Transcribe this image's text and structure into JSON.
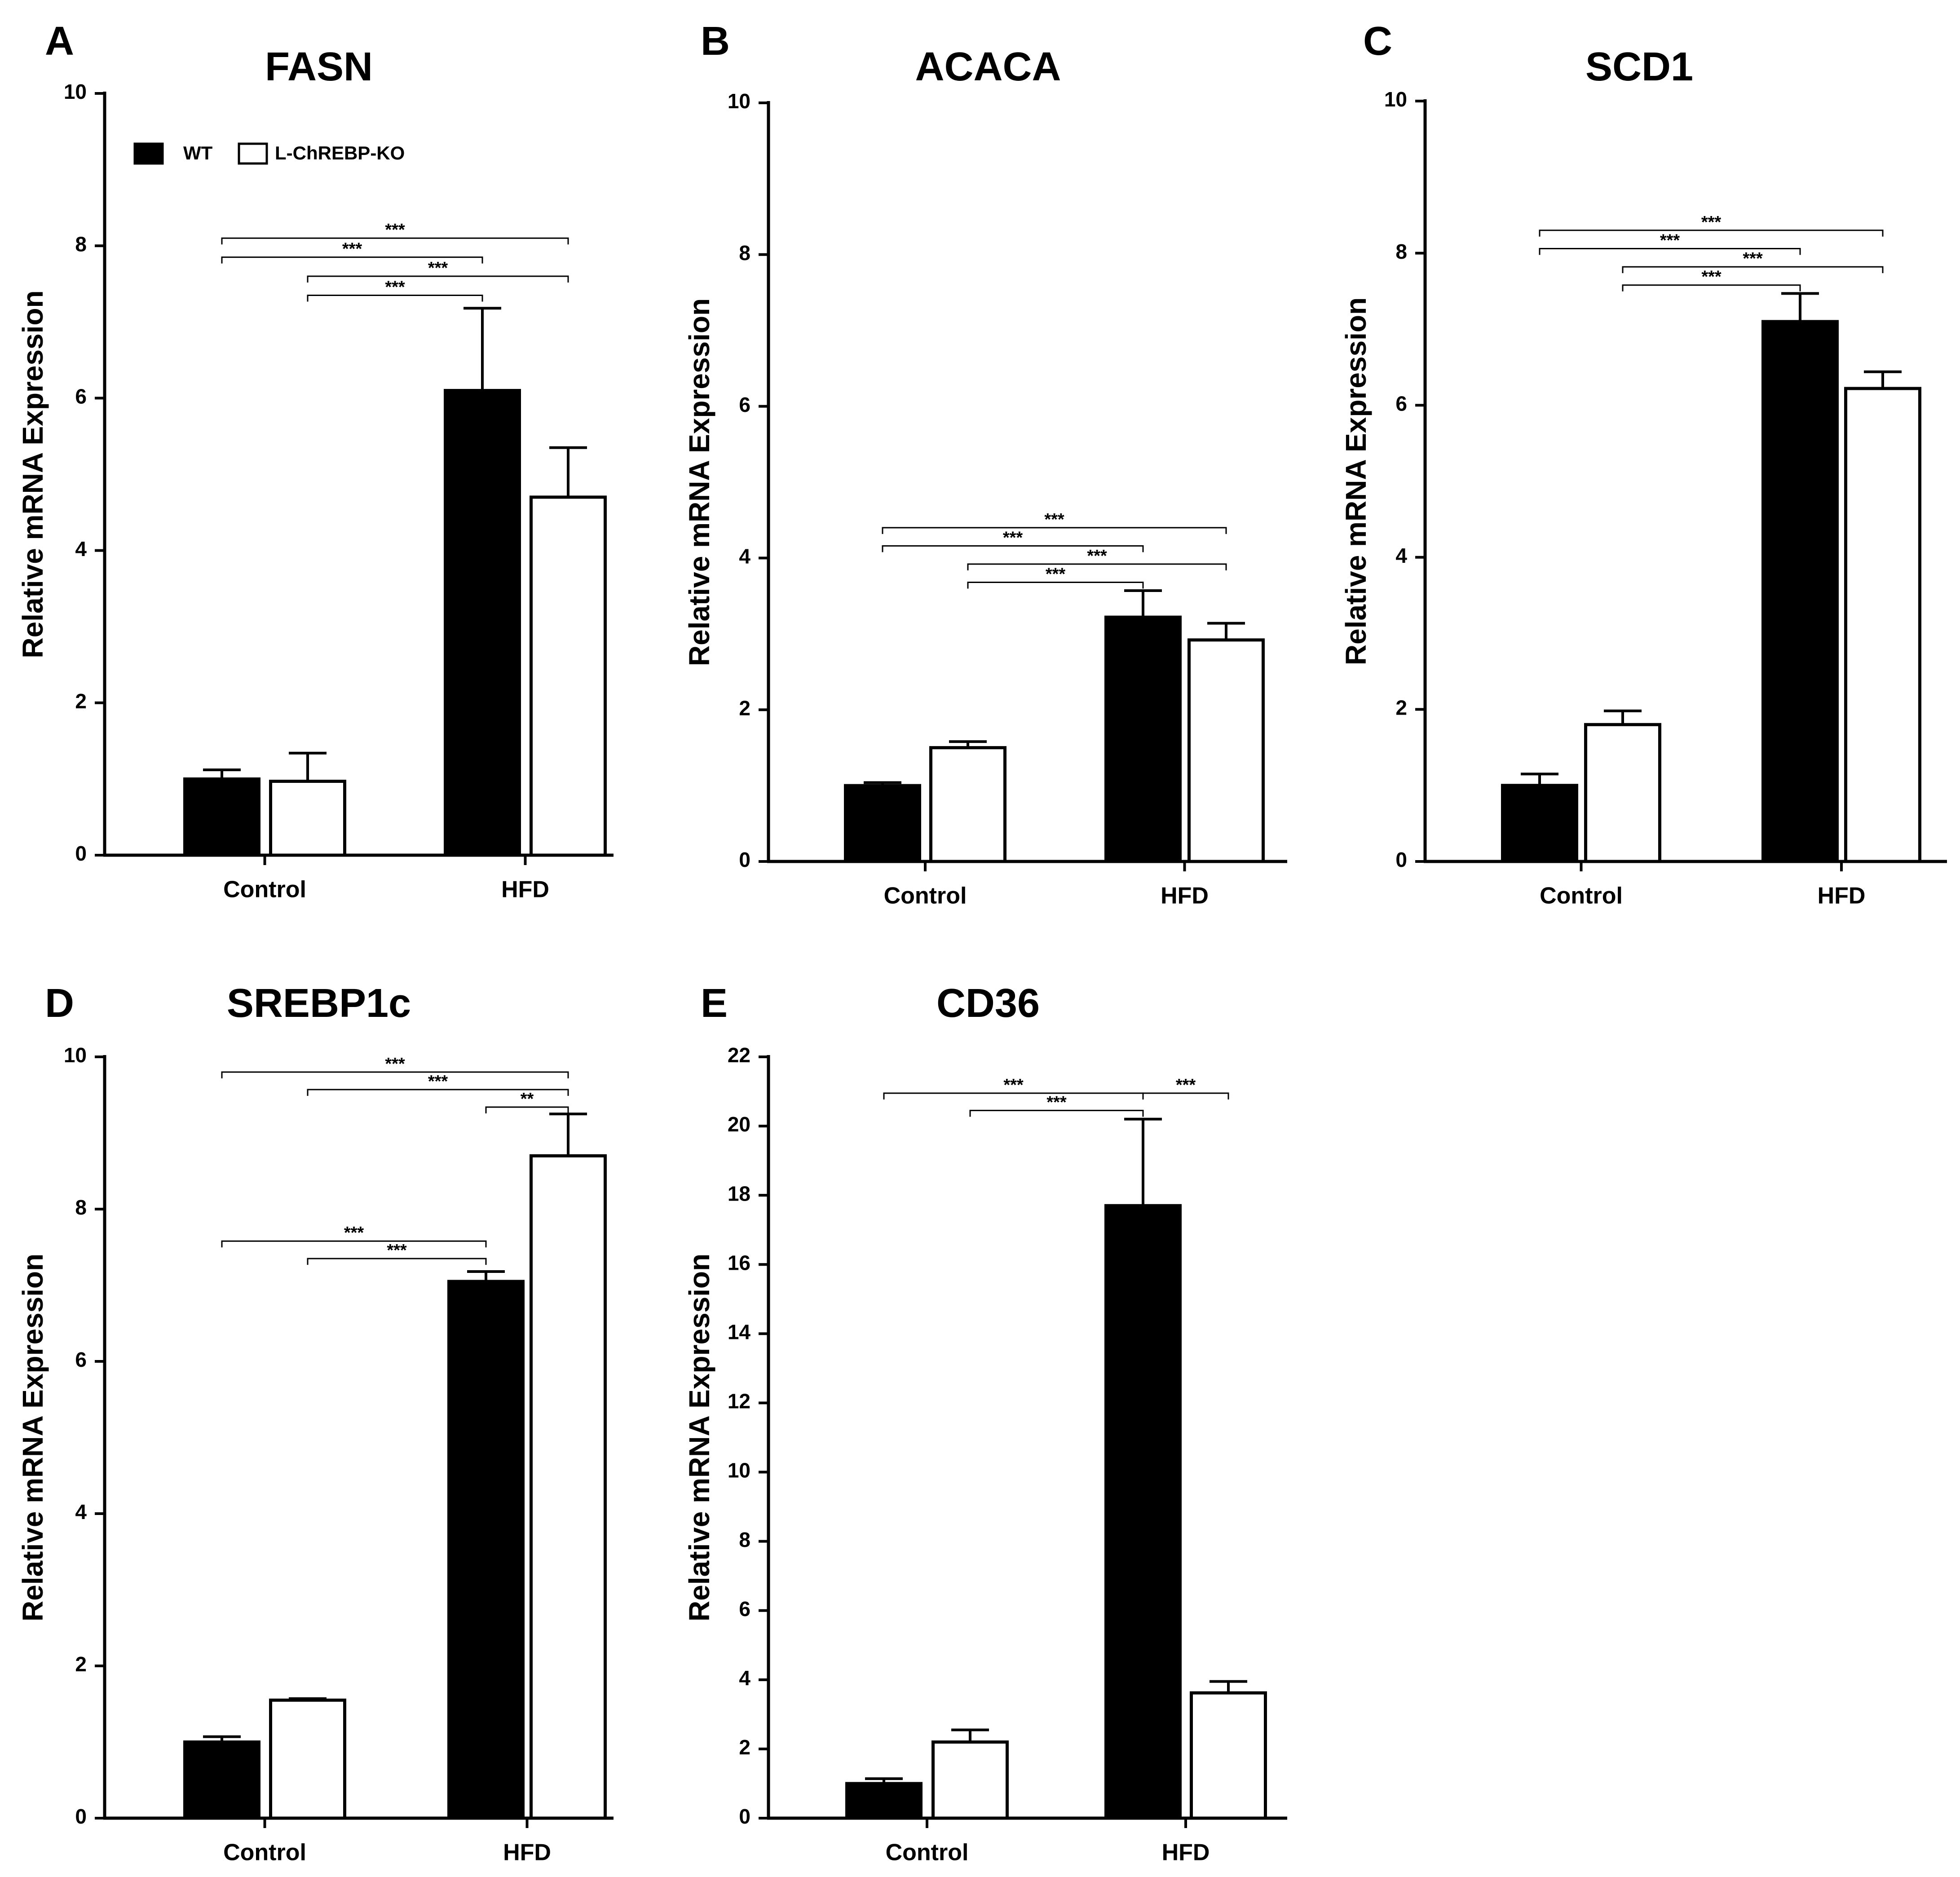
{
  "legend": {
    "entries": [
      {
        "name": "WT",
        "color": "#000000"
      },
      {
        "name": "L-ChREBP-KO",
        "color": "#ffffff"
      }
    ]
  },
  "chart_data": [
    {
      "type": "bar",
      "panel": "A",
      "title": "FASN",
      "xlabel": "",
      "ylabel": "Relative mRNA Expression",
      "categories": [
        "Control",
        "HFD"
      ],
      "ylim": [
        0,
        10
      ],
      "yticks": [
        0,
        2,
        4,
        6,
        8,
        10
      ],
      "show_legend": true,
      "series": [
        {
          "name": "WT",
          "values": [
            1.0,
            6.1
          ],
          "errors": [
            0.12,
            1.08
          ]
        },
        {
          "name": "L-ChREBP-KO",
          "values": [
            0.97,
            4.7
          ],
          "errors": [
            0.37,
            0.65
          ]
        }
      ],
      "significance": [
        {
          "from": [
            0,
            0
          ],
          "to": [
            1,
            1
          ],
          "label": "***",
          "level": 8.1
        },
        {
          "from": [
            0,
            0
          ],
          "to": [
            1,
            0
          ],
          "label": "***",
          "level": 7.85
        },
        {
          "from": [
            0,
            1
          ],
          "to": [
            1,
            1
          ],
          "label": "***",
          "level": 7.6
        },
        {
          "from": [
            0,
            1
          ],
          "to": [
            1,
            0
          ],
          "label": "***",
          "level": 7.35
        }
      ]
    },
    {
      "type": "bar",
      "panel": "B",
      "title": "ACACA",
      "xlabel": "",
      "ylabel": "Relative mRNA Expression",
      "categories": [
        "Control",
        "HFD"
      ],
      "ylim": [
        0,
        10
      ],
      "yticks": [
        0,
        2,
        4,
        6,
        8,
        10
      ],
      "show_legend": false,
      "series": [
        {
          "name": "WT",
          "values": [
            1.0,
            3.22
          ],
          "errors": [
            0.04,
            0.35
          ]
        },
        {
          "name": "L-ChREBP-KO",
          "values": [
            1.5,
            2.92
          ],
          "errors": [
            0.08,
            0.22
          ]
        }
      ],
      "significance": [
        {
          "from": [
            0,
            0
          ],
          "to": [
            1,
            1
          ],
          "label": "***",
          "level": 4.4
        },
        {
          "from": [
            0,
            0
          ],
          "to": [
            1,
            0
          ],
          "label": "***",
          "level": 4.16
        },
        {
          "from": [
            0,
            1
          ],
          "to": [
            1,
            1
          ],
          "label": "***",
          "level": 3.92
        },
        {
          "from": [
            0,
            1
          ],
          "to": [
            1,
            0
          ],
          "label": "***",
          "level": 3.68
        }
      ]
    },
    {
      "type": "bar",
      "panel": "C",
      "title": "SCD1",
      "xlabel": "",
      "ylabel": "Relative mRNA Expression",
      "categories": [
        "Control",
        "HFD"
      ],
      "ylim": [
        0,
        10
      ],
      "yticks": [
        0,
        2,
        4,
        6,
        8,
        10
      ],
      "show_legend": false,
      "series": [
        {
          "name": "WT",
          "values": [
            1.0,
            7.1
          ],
          "errors": [
            0.15,
            0.37
          ]
        },
        {
          "name": "L-ChREBP-KO",
          "values": [
            1.8,
            6.22
          ],
          "errors": [
            0.18,
            0.22
          ]
        }
      ],
      "significance": [
        {
          "from": [
            0,
            0
          ],
          "to": [
            1,
            1
          ],
          "label": "***",
          "level": 8.3
        },
        {
          "from": [
            0,
            0
          ],
          "to": [
            1,
            0
          ],
          "label": "***",
          "level": 8.06
        },
        {
          "from": [
            0,
            1
          ],
          "to": [
            1,
            1
          ],
          "label": "***",
          "level": 7.82
        },
        {
          "from": [
            0,
            1
          ],
          "to": [
            1,
            0
          ],
          "label": "***",
          "level": 7.58
        }
      ]
    },
    {
      "type": "bar",
      "panel": "D",
      "title": "SREBP1c",
      "xlabel": "",
      "ylabel": "Relative mRNA Expression",
      "categories": [
        "Control",
        "HFD"
      ],
      "ylim": [
        0,
        10
      ],
      "yticks": [
        0,
        2,
        4,
        6,
        8,
        10
      ],
      "show_legend": false,
      "series": [
        {
          "name": "WT",
          "values": [
            1.0,
            7.05
          ],
          "errors": [
            0.07,
            0.13
          ]
        },
        {
          "name": "L-ChREBP-KO",
          "values": [
            1.55,
            8.7
          ],
          "errors": [
            0.02,
            0.55
          ]
        }
      ],
      "significance": [
        {
          "from": [
            0,
            0
          ],
          "to": [
            1,
            1
          ],
          "label": "***",
          "level": 9.8
        },
        {
          "from": [
            0,
            1
          ],
          "to": [
            1,
            1
          ],
          "label": "***",
          "level": 9.57
        },
        {
          "from": [
            1,
            0
          ],
          "to": [
            1,
            1
          ],
          "label": "**",
          "level": 9.34
        },
        {
          "from": [
            0,
            0
          ],
          "to": [
            1,
            0
          ],
          "label": "***",
          "level": 7.58
        },
        {
          "from": [
            0,
            1
          ],
          "to": [
            1,
            0
          ],
          "label": "***",
          "level": 7.35
        }
      ]
    },
    {
      "type": "bar",
      "panel": "E",
      "title": "CD36",
      "xlabel": "",
      "ylabel": "Relative mRNA Expression",
      "categories": [
        "Control",
        "HFD"
      ],
      "ylim": [
        0,
        22
      ],
      "yticks": [
        0,
        2,
        4,
        6,
        8,
        10,
        12,
        14,
        16,
        18,
        20,
        22
      ],
      "show_legend": false,
      "series": [
        {
          "name": "WT",
          "values": [
            1.0,
            17.7
          ],
          "errors": [
            0.14,
            2.5
          ]
        },
        {
          "name": "L-ChREBP-KO",
          "values": [
            2.2,
            3.62
          ],
          "errors": [
            0.35,
            0.33
          ]
        }
      ],
      "significance": [
        {
          "from": [
            0,
            0
          ],
          "to": [
            1,
            0
          ],
          "label": "***",
          "level": 20.95
        },
        {
          "from": [
            0,
            1
          ],
          "to": [
            1,
            0
          ],
          "label": "***",
          "level": 20.45
        },
        {
          "from": [
            1,
            0
          ],
          "to": [
            1,
            1
          ],
          "label": "***",
          "level": 20.95
        }
      ]
    }
  ]
}
